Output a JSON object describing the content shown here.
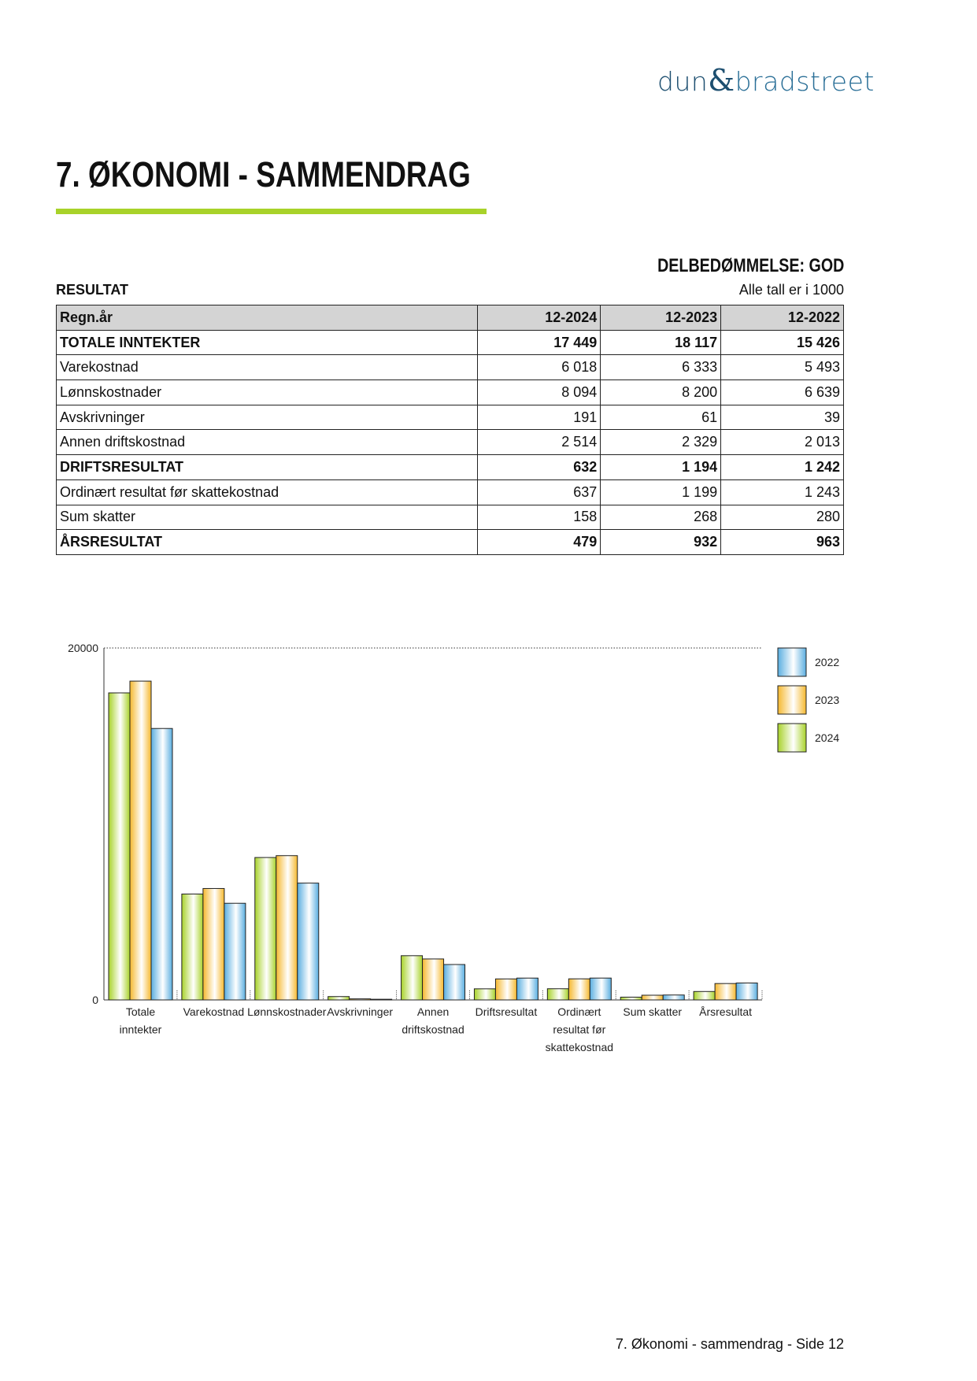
{
  "logo": {
    "part1": "dun",
    "amp": "&",
    "part2": "bradstreet"
  },
  "title": "7. ØKONOMI - SAMMENDRAG",
  "rating": "DELBEDØMMELSE: GOD",
  "section": "RESULTAT",
  "unit_note": "Alle tall er i 1000",
  "table": {
    "headers": [
      "Regn.år",
      "12-2024",
      "12-2023",
      "12-2022"
    ],
    "rows": [
      {
        "label": "TOTALE INNTEKTER",
        "bold": true,
        "values": [
          "17 449",
          "18 117",
          "15 426"
        ]
      },
      {
        "label": "Varekostnad",
        "bold": false,
        "values": [
          "6 018",
          "6 333",
          "5 493"
        ]
      },
      {
        "label": "Lønnskostnader",
        "bold": false,
        "values": [
          "8 094",
          "8 200",
          "6 639"
        ]
      },
      {
        "label": "Avskrivninger",
        "bold": false,
        "values": [
          "191",
          "61",
          "39"
        ]
      },
      {
        "label": "Annen driftskostnad",
        "bold": false,
        "values": [
          "2 514",
          "2 329",
          "2 013"
        ]
      },
      {
        "label": "DRIFTSRESULTAT",
        "bold": true,
        "values": [
          "632",
          "1 194",
          "1 242"
        ]
      },
      {
        "label": "Ordinært resultat før skattekostnad",
        "bold": false,
        "values": [
          "637",
          "1 199",
          "1 243"
        ]
      },
      {
        "label": "Sum skatter",
        "bold": false,
        "values": [
          "158",
          "268",
          "280"
        ]
      },
      {
        "label": "ÅRSRESULTAT",
        "bold": true,
        "values": [
          "479",
          "932",
          "963"
        ]
      }
    ]
  },
  "chart_data": {
    "type": "bar",
    "categories": [
      [
        "Totale",
        "inntekter"
      ],
      [
        "Varekostnad"
      ],
      [
        "Lønnskostnader"
      ],
      [
        "Avskrivninger"
      ],
      [
        "Annen",
        "driftskostnad"
      ],
      [
        "Driftsresultat"
      ],
      [
        "Ordinært",
        "resultat før",
        "skattekostnad"
      ],
      [
        "Sum skatter"
      ],
      [
        "Årsresultat"
      ]
    ],
    "series": [
      {
        "name": "2024",
        "color": "#a8d22a",
        "values": [
          17449,
          6018,
          8094,
          191,
          2514,
          632,
          637,
          158,
          479
        ]
      },
      {
        "name": "2023",
        "color": "#f5b82e",
        "values": [
          18117,
          6333,
          8200,
          61,
          2329,
          1194,
          1199,
          268,
          932
        ]
      },
      {
        "name": "2022",
        "color": "#5aaee0",
        "values": [
          15426,
          5493,
          6639,
          39,
          2013,
          1242,
          1243,
          280,
          963
        ]
      }
    ],
    "ylim": [
      0,
      20000
    ],
    "yticks": [
      "0",
      "20000"
    ],
    "legend_order": [
      "2022",
      "2023",
      "2024"
    ],
    "legend_position": "right",
    "grid": false
  },
  "footer": "7. Økonomi - sammendrag - Side 12"
}
